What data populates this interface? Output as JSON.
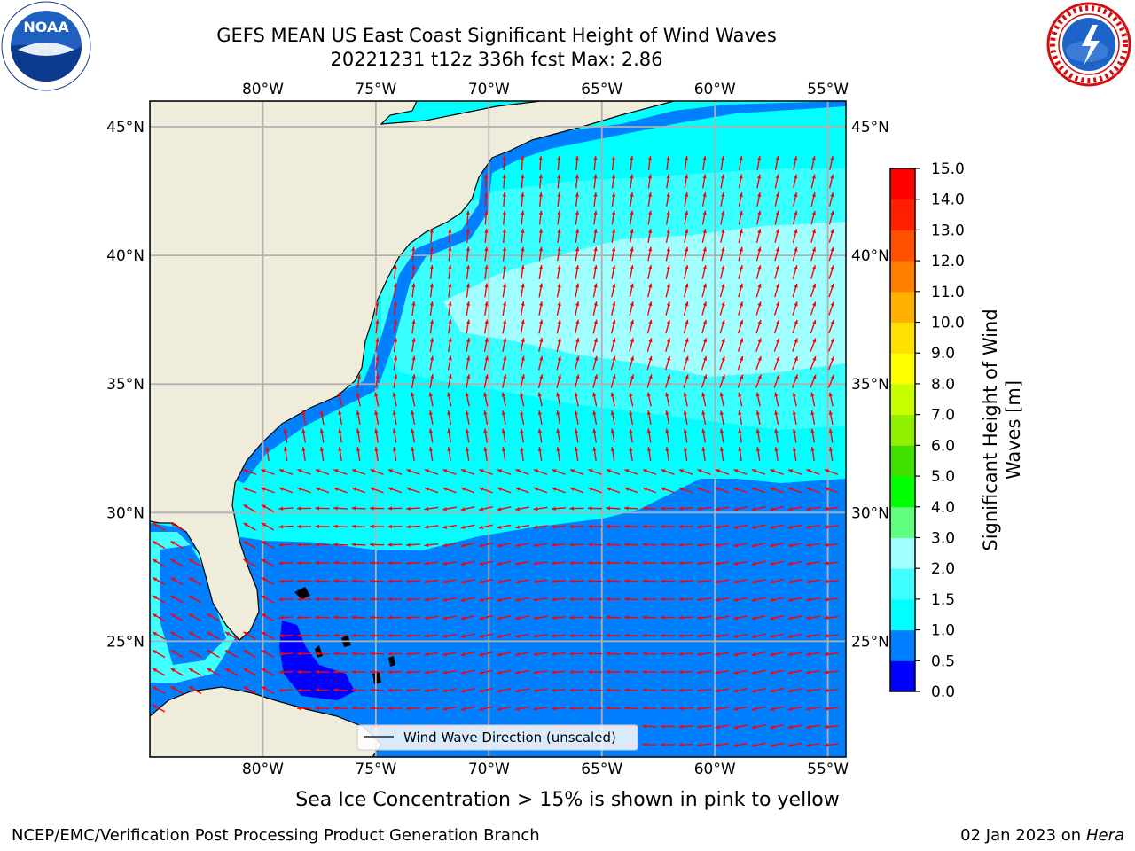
{
  "title": {
    "line1": "GEFS MEAN US East Coast Significant Height of Wind Waves",
    "line2": "20221231 t12z 336h fcst   Max: 2.86"
  },
  "logos": {
    "left": "noaa-logo",
    "left_text": "NOAA",
    "right": "nws-logo"
  },
  "map": {
    "lon_ticks_top": [
      "80°W",
      "75°W",
      "70°W",
      "65°W",
      "60°W",
      "55°W"
    ],
    "lon_ticks_bottom": [
      "80°W",
      "75°W",
      "70°W",
      "65°W",
      "60°W",
      "55°W"
    ],
    "lat_ticks_left": [
      "45°N",
      "40°N",
      "35°N",
      "30°N",
      "25°N"
    ],
    "lat_ticks_right": [
      "45°N",
      "40°N",
      "35°N",
      "30°N",
      "25°N"
    ],
    "lon_values": [
      -80,
      -75,
      -70,
      -65,
      -60,
      -55
    ],
    "lat_values": [
      45,
      40,
      35,
      30,
      25
    ],
    "lon_range": [
      -85,
      -54.2
    ],
    "lat_range": [
      20.5,
      46
    ],
    "colors": {
      "land": "#efecdc",
      "arrow": "#ff0000",
      "gridline": "#b0b0b0"
    },
    "legend": {
      "label": "Wind Wave Direction (unscaled)",
      "placement": "bottom-center"
    }
  },
  "colorbar": {
    "title_line1": "Significant Height of Wind",
    "title_line2": "Waves [m]",
    "ticks": [
      "0.0",
      "0.5",
      "1.0",
      "1.5",
      "2.0",
      "3.0",
      "4.0",
      "5.0",
      "6.0",
      "7.0",
      "8.0",
      "9.0",
      "10.0",
      "11.0",
      "12.0",
      "13.0",
      "14.0",
      "15.0"
    ],
    "colors": [
      "#0000ff",
      "#0080ff",
      "#00ffff",
      "#40ffff",
      "#a0ffff",
      "#60ff80",
      "#00ff00",
      "#40e000",
      "#90f000",
      "#c8ff00",
      "#ffff00",
      "#ffe000",
      "#ffb000",
      "#ff8000",
      "#ff5000",
      "#ff2000",
      "#ff0000"
    ]
  },
  "note": "Sea Ice Concentration > 15% is shown in pink to yellow",
  "footer": {
    "left": "NCEP/EMC/Verification Post Processing Product Generation Branch",
    "right_date": "02 Jan 2023 on",
    "right_host": "Hera"
  }
}
